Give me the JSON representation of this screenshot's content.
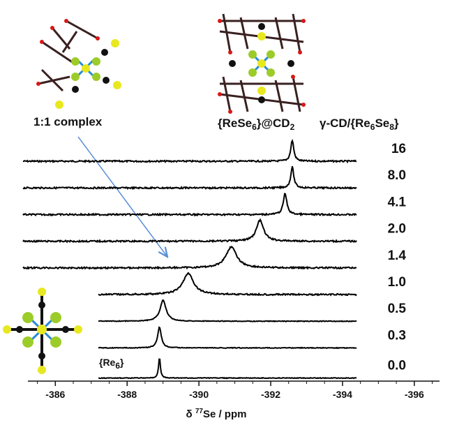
{
  "chart_data": {
    "type": "nmr-stack",
    "xlabel_parts": [
      "δ ",
      "77",
      "Se / ppm"
    ],
    "legend_title_parts": [
      "γ-CD/{Re",
      "6",
      "Se",
      "8",
      "}"
    ],
    "annotations": {
      "complex": "1:1 complex",
      "dimer_parts": [
        "{ReSe",
        "6",
        "}@CD",
        "2"
      ],
      "ref_parts": [
        "{Re",
        "6",
        "}"
      ]
    },
    "xlim": [
      -385.1,
      -396.8
    ],
    "xticks": [
      -386,
      -388,
      -390,
      -392,
      -394,
      -396
    ],
    "color": "#000000",
    "series": [
      {
        "name": "16",
        "peak": -392.6,
        "width": 0.05,
        "xstart": -385.1,
        "xend": -394.4
      },
      {
        "name": "8.0",
        "peak": -392.6,
        "width": 0.05,
        "xstart": -385.1,
        "xend": -394.4
      },
      {
        "name": "4.1",
        "peak": -392.4,
        "width": 0.06,
        "xstart": -385.1,
        "xend": -394.4
      },
      {
        "name": "2.0",
        "peak": -391.7,
        "width": 0.12,
        "xstart": -385.1,
        "xend": -394.4
      },
      {
        "name": "1.4",
        "peak": -390.9,
        "width": 0.18,
        "xstart": -385.1,
        "xend": -394.4
      },
      {
        "name": "1.0",
        "peak": -389.7,
        "width": 0.18,
        "xstart": -387.2,
        "xend": -394.4
      },
      {
        "name": "0.5",
        "peak": -389.0,
        "width": 0.1,
        "xstart": -387.2,
        "xend": -394.4
      },
      {
        "name": "0.3",
        "peak": -388.9,
        "width": 0.06,
        "xstart": -387.2,
        "xend": -394.4
      },
      {
        "name": "0.0",
        "peak": -388.9,
        "width": 0.03,
        "xstart": -387.2,
        "xend": -394.4
      }
    ]
  }
}
